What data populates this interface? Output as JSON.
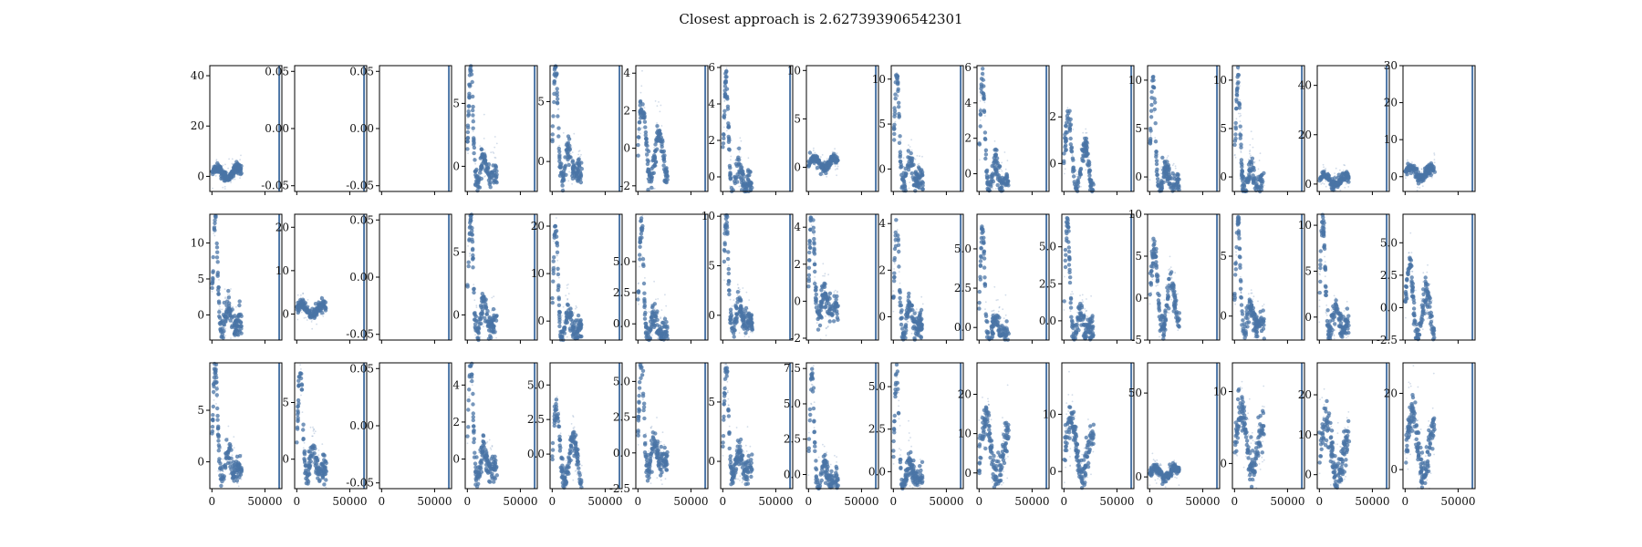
{
  "chart_data": {
    "type": "grid-of-scatter",
    "title": "Closest approach is 2.627393906542301",
    "rows": 3,
    "cols": 15,
    "series_color": "#4a74a6",
    "vline_color": "#4a74a6",
    "x_range": [
      -2000,
      66000
    ],
    "x_marker": 63500,
    "x_ticks": [
      0,
      50000
    ],
    "x_tick_labels": [
      "0",
      "50000"
    ],
    "panels": [
      {
        "ylim": [
          -6,
          44
        ],
        "ticks": [
          0,
          20,
          40
        ],
        "labels": [
          "0",
          "20",
          "40"
        ],
        "shape": "flat"
      },
      {
        "ylim": [
          -0.055,
          0.055
        ],
        "ticks": [
          -0.05,
          0.0,
          0.05
        ],
        "labels": [
          "-0.05",
          "0.00",
          "0.05"
        ],
        "shape": "empty"
      },
      {
        "ylim": [
          -0.055,
          0.055
        ],
        "ticks": [
          -0.05,
          0.0,
          0.05
        ],
        "labels": [
          "-0.05",
          "0.00",
          "0.05"
        ],
        "shape": "empty"
      },
      {
        "ylim": [
          -2,
          8
        ],
        "ticks": [
          0,
          5
        ],
        "labels": [
          "0",
          "5"
        ],
        "shape": "peak"
      },
      {
        "ylim": [
          -2.5,
          8
        ],
        "ticks": [
          0,
          5
        ],
        "labels": [
          "0",
          "5"
        ],
        "shape": "peak"
      },
      {
        "ylim": [
          -2.3,
          4.4
        ],
        "ticks": [
          -2,
          0,
          2,
          4
        ],
        "labels": [
          "-2",
          "0",
          "2",
          "4"
        ],
        "shape": "wave"
      },
      {
        "ylim": [
          -0.8,
          6.1
        ],
        "ticks": [
          0,
          2,
          4,
          6
        ],
        "labels": [
          "0",
          "2",
          "4",
          "6"
        ],
        "shape": "peak"
      },
      {
        "ylim": [
          -2.5,
          10.5
        ],
        "ticks": [
          0,
          5,
          10
        ],
        "labels": [
          "0",
          "5",
          "10"
        ],
        "shape": "flat"
      },
      {
        "ylim": [
          -2.5,
          11.5
        ],
        "ticks": [
          0,
          5,
          10
        ],
        "labels": [
          "0",
          "5",
          "10"
        ],
        "shape": "peak"
      },
      {
        "ylim": [
          -1.0,
          6.1
        ],
        "ticks": [
          0,
          2,
          4,
          6
        ],
        "labels": [
          "0",
          "2",
          "4",
          "6"
        ],
        "shape": "peak"
      },
      {
        "ylim": [
          -1.2,
          4.2
        ],
        "ticks": [
          0,
          2
        ],
        "labels": [
          "0",
          "2"
        ],
        "shape": "wave"
      },
      {
        "ylim": [
          -1.5,
          11.5
        ],
        "ticks": [
          0,
          5,
          10
        ],
        "labels": [
          "0",
          "5",
          "10"
        ],
        "shape": "peak"
      },
      {
        "ylim": [
          -1.5,
          11.5
        ],
        "ticks": [
          0,
          5,
          10
        ],
        "labels": [
          "0",
          "5",
          "10"
        ],
        "shape": "peak"
      },
      {
        "ylim": [
          -3,
          48
        ],
        "ticks": [
          0,
          20,
          40
        ],
        "labels": [
          "0",
          "20",
          "40"
        ],
        "shape": "flat"
      },
      {
        "ylim": [
          -4,
          30
        ],
        "ticks": [
          0,
          10,
          20,
          30
        ],
        "labels": [
          "0",
          "10",
          "20",
          "30"
        ],
        "shape": "flat"
      },
      {
        "ylim": [
          -3.5,
          14
        ],
        "ticks": [
          0,
          5,
          10
        ],
        "labels": [
          "0",
          "5",
          "10"
        ],
        "shape": "peak"
      },
      {
        "ylim": [
          -6,
          23
        ],
        "ticks": [
          0,
          10,
          20
        ],
        "labels": [
          "0",
          "10",
          "20"
        ],
        "shape": "flat"
      },
      {
        "ylim": [
          -0.055,
          0.055
        ],
        "ticks": [
          -0.05,
          0.0,
          0.05
        ],
        "labels": [
          "-0.05",
          "0.00",
          "0.05"
        ],
        "shape": "empty"
      },
      {
        "ylim": [
          -2,
          8
        ],
        "ticks": [
          0,
          5
        ],
        "labels": [
          "0",
          "5"
        ],
        "shape": "peak"
      },
      {
        "ylim": [
          -4,
          22.5
        ],
        "ticks": [
          0,
          10,
          20
        ],
        "labels": [
          "0",
          "10",
          "20"
        ],
        "shape": "peak"
      },
      {
        "ylim": [
          -1.3,
          8.8
        ],
        "ticks": [
          0.0,
          2.5,
          5.0
        ],
        "labels": [
          "0.0",
          "2.5",
          "5.0"
        ],
        "shape": "peak"
      },
      {
        "ylim": [
          -2.5,
          10.2
        ],
        "ticks": [
          0,
          5,
          10
        ],
        "labels": [
          "0",
          "5",
          "10"
        ],
        "shape": "peak"
      },
      {
        "ylim": [
          -2.1,
          4.7
        ],
        "ticks": [
          -2,
          0,
          2,
          4
        ],
        "labels": [
          "-2",
          "0",
          "2",
          "4"
        ],
        "shape": "peak"
      },
      {
        "ylim": [
          -1.0,
          4.4
        ],
        "ticks": [
          0,
          2,
          4
        ],
        "labels": [
          "0",
          "2",
          "4"
        ],
        "shape": "peak"
      },
      {
        "ylim": [
          -0.8,
          7.2
        ],
        "ticks": [
          0.0,
          2.5,
          5.0
        ],
        "labels": [
          "0.0",
          "2.5",
          "5.0"
        ],
        "shape": "peak"
      },
      {
        "ylim": [
          -1.3,
          7.2
        ],
        "ticks": [
          0.0,
          2.5,
          5.0
        ],
        "labels": [
          "0.0",
          "2.5",
          "5.0"
        ],
        "shape": "peak"
      },
      {
        "ylim": [
          -5,
          10
        ],
        "ticks": [
          -5,
          0,
          5,
          10
        ],
        "labels": [
          "-5",
          "0",
          "5",
          "10"
        ],
        "shape": "wave"
      },
      {
        "ylim": [
          -2,
          8.5
        ],
        "ticks": [
          0,
          5
        ],
        "labels": [
          "0",
          "5"
        ],
        "shape": "peak"
      },
      {
        "ylim": [
          -2.5,
          11.2
        ],
        "ticks": [
          0,
          5,
          10
        ],
        "labels": [
          "0",
          "5",
          "10"
        ],
        "shape": "peak"
      },
      {
        "ylim": [
          -2.5,
          7.2
        ],
        "ticks": [
          -2.5,
          0.0,
          2.5,
          5.0
        ],
        "labels": [
          "-2.5",
          "0.0",
          "2.5",
          "5.0"
        ],
        "shape": "wave"
      },
      {
        "ylim": [
          -2.6,
          9.6
        ],
        "ticks": [
          0,
          5
        ],
        "labels": [
          "0",
          "5"
        ],
        "shape": "peak"
      },
      {
        "ylim": [
          -2.6,
          8.5
        ],
        "ticks": [
          0,
          5
        ],
        "labels": [
          "0",
          "5"
        ],
        "shape": "peak"
      },
      {
        "ylim": [
          -0.055,
          0.055
        ],
        "ticks": [
          -0.05,
          0.0,
          0.05
        ],
        "labels": [
          "-0.05",
          "0.00",
          "0.05"
        ],
        "shape": "empty"
      },
      {
        "ylim": [
          -1.6,
          5.2
        ],
        "ticks": [
          0,
          2,
          4
        ],
        "labels": [
          "0",
          "2",
          "4"
        ],
        "shape": "peak"
      },
      {
        "ylim": [
          -2.5,
          6.6
        ],
        "ticks": [
          0.0,
          2.5,
          5.0
        ],
        "labels": [
          "0.0",
          "2.5",
          "5.0"
        ],
        "shape": "wave"
      },
      {
        "ylim": [
          -2.5,
          6.3
        ],
        "ticks": [
          -2.5,
          0.0,
          2.5,
          5.0
        ],
        "labels": [
          "-2.5",
          "0.0",
          "2.5",
          "5.0"
        ],
        "shape": "peak"
      },
      {
        "ylim": [
          -2.3,
          8.3
        ],
        "ticks": [
          0,
          5
        ],
        "labels": [
          "0",
          "5"
        ],
        "shape": "peak"
      },
      {
        "ylim": [
          -1.0,
          7.9
        ],
        "ticks": [
          0.0,
          2.5,
          5.0,
          7.5
        ],
        "labels": [
          "0.0",
          "2.5",
          "5.0",
          "7.5"
        ],
        "shape": "peak"
      },
      {
        "ylim": [
          -1.0,
          6.4
        ],
        "ticks": [
          0.0,
          2.5,
          5.0
        ],
        "labels": [
          "0.0",
          "2.5",
          "5.0"
        ],
        "shape": "peak"
      },
      {
        "ylim": [
          -4,
          28
        ],
        "ticks": [
          0,
          10,
          20
        ],
        "labels": [
          "0",
          "10",
          "20"
        ],
        "shape": "wide"
      },
      {
        "ylim": [
          -3,
          19
        ],
        "ticks": [
          0,
          10
        ],
        "labels": [
          "0",
          "10"
        ],
        "shape": "wide"
      },
      {
        "ylim": [
          -7,
          68
        ],
        "ticks": [
          0,
          50
        ],
        "labels": [
          "0",
          "50"
        ],
        "shape": "flat"
      },
      {
        "ylim": [
          -3.5,
          14
        ],
        "ticks": [
          0,
          10
        ],
        "labels": [
          "0",
          "10"
        ],
        "shape": "wide"
      },
      {
        "ylim": [
          -3.5,
          28
        ],
        "ticks": [
          0,
          10,
          20
        ],
        "labels": [
          "0",
          "10",
          "20"
        ],
        "shape": "wide"
      },
      {
        "ylim": [
          -5,
          28
        ],
        "ticks": [
          0,
          20
        ],
        "labels": [
          "0",
          "20"
        ],
        "shape": "wide"
      }
    ]
  }
}
